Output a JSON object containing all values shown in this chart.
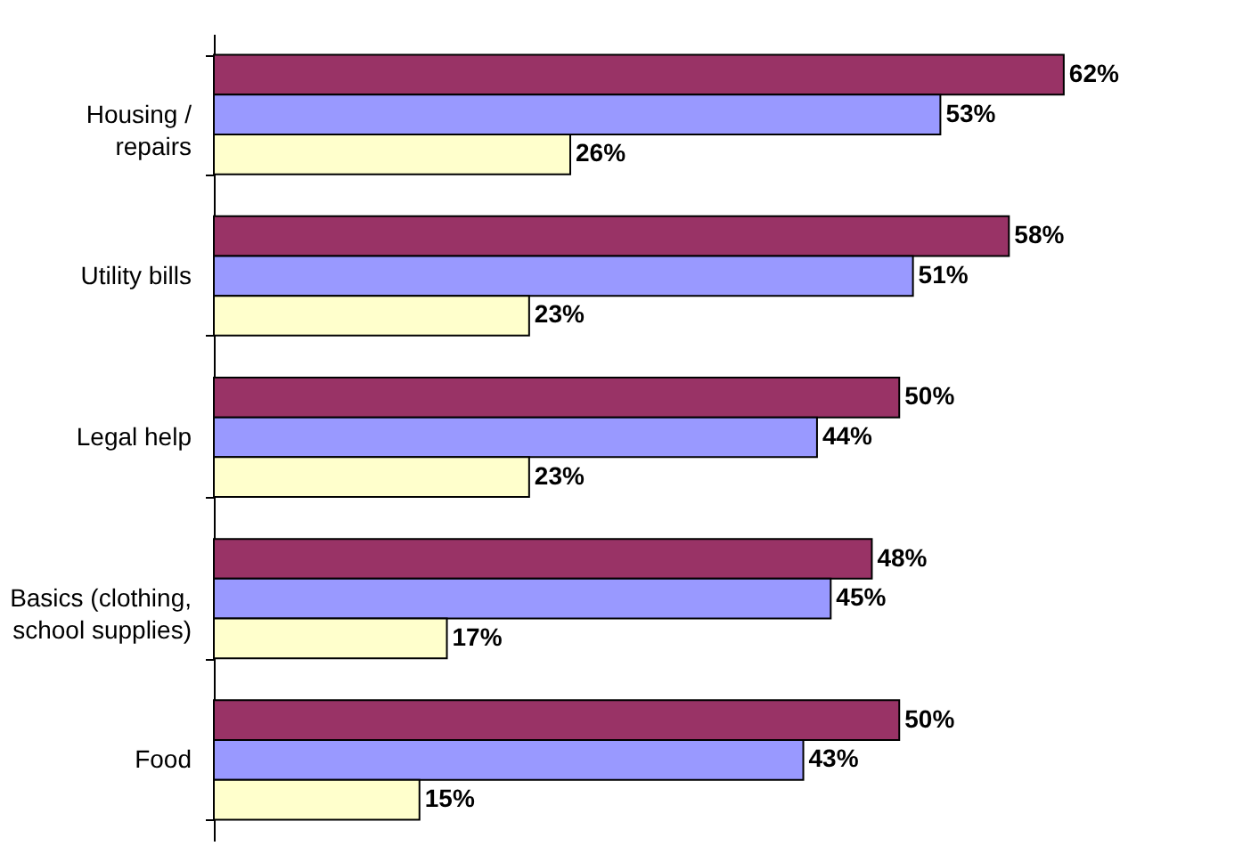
{
  "chart_data": {
    "type": "bar",
    "orientation": "horizontal",
    "categories": [
      "Housing /\nrepairs",
      "Utility bills",
      "Legal help",
      "Basics (clothing,\nschool supplies)",
      "Food"
    ],
    "series": [
      {
        "color": "#993366",
        "values": [
          62,
          58,
          50,
          48,
          50
        ],
        "value_labels": [
          "62%",
          "58%",
          "50%",
          "48%",
          "50%"
        ]
      },
      {
        "color": "#9999ff",
        "values": [
          53,
          51,
          44,
          45,
          43
        ],
        "value_labels": [
          "53%",
          "51%",
          "44%",
          "45%",
          "43%"
        ]
      },
      {
        "color": "#ffffcc",
        "values": [
          26,
          23,
          23,
          17,
          15
        ],
        "value_labels": [
          "26%",
          "23%",
          "23%",
          "17%",
          "15%"
        ]
      }
    ],
    "legend": false
  }
}
